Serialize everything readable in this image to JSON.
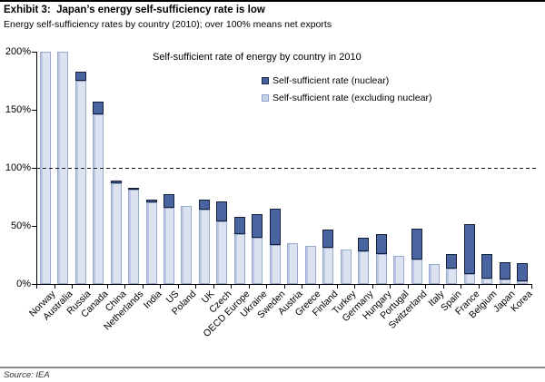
{
  "header": {
    "exhibit_title": "Exhibit 3:  Japan’s energy self-sufficiency rate is low",
    "subtitle": "Energy self-sufficiency rates by country (2010); over 100% means net exports"
  },
  "footer": {
    "source": "Source: IEA"
  },
  "colors": {
    "nuclear_fill": "#4A64A1",
    "nuclear_border": "#141F38",
    "ex_nuclear_fill": "#D7DEEF",
    "ex_nuclear_border": "#9AAACE",
    "axis": "#000000",
    "footer_rule": "#8C8C8C"
  },
  "chart_data": {
    "type": "bar",
    "stacked": true,
    "title": "Self-sufficient rate of energy by country in 2010",
    "legend_position": "top-center",
    "legend": [
      {
        "label": "Self-sufficient rate (nuclear)"
      },
      {
        "label": "Self-sufficient rate (excluding nuclear)"
      }
    ],
    "ylim": [
      0,
      200
    ],
    "y_ticks": [
      "0%",
      "50%",
      "100%",
      "150%",
      "200%"
    ],
    "y_tick_values": [
      0,
      50,
      100,
      150,
      200
    ],
    "reference_line": 100,
    "grid": false,
    "categories": [
      "Norway",
      "Australia",
      "Russia",
      "Canada",
      "China",
      "Netherlands",
      "India",
      "US",
      "Poland",
      "UK",
      "Czech",
      "OECD Europe",
      "Ukraine",
      "Sweden",
      "Austria",
      "Greece",
      "Finland",
      "Turkey",
      "Germany",
      "Hungary",
      "Portugal",
      "Switzerland",
      "Italy",
      "Spain",
      "France",
      "Belgium",
      "Japan",
      "Korea"
    ],
    "series": [
      {
        "name": "Self-sufficient rate (excluding nuclear)",
        "values": [
          200,
          200,
          175,
          146,
          87,
          81,
          70,
          66,
          67,
          64,
          54,
          43,
          40,
          34,
          35,
          33,
          31,
          30,
          28,
          26,
          24,
          21,
          17,
          13,
          9,
          5,
          4,
          2
        ]
      },
      {
        "name": "Self-sufficient rate (nuclear)",
        "values": [
          0,
          0,
          8,
          11,
          2,
          2,
          3,
          11,
          0,
          9,
          17,
          15,
          20,
          31,
          0,
          0,
          16,
          0,
          12,
          17,
          0,
          27,
          0,
          13,
          43,
          21,
          15,
          16
        ]
      }
    ],
    "clipped_at_axis_max": [
      "Norway",
      "Australia"
    ]
  }
}
